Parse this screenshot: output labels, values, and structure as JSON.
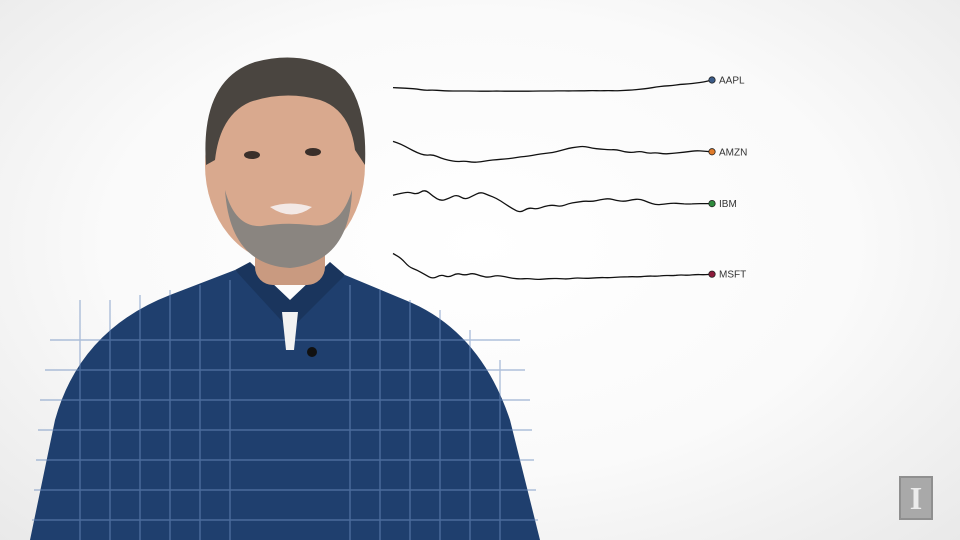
{
  "chart_data": {
    "type": "line",
    "title": "",
    "xlabel": "",
    "ylabel": "",
    "layout": "small-multiples sparklines, labels at right end",
    "series": [
      {
        "name": "AAPL",
        "color": "#3b5b88",
        "values": [
          0.62,
          0.6,
          0.58,
          0.55,
          0.48,
          0.5,
          0.47,
          0.45,
          0.45,
          0.45,
          0.45,
          0.44,
          0.44,
          0.45,
          0.44,
          0.44,
          0.44,
          0.44,
          0.45,
          0.45,
          0.45,
          0.46,
          0.45,
          0.46,
          0.46,
          0.47,
          0.46,
          0.47,
          0.46,
          0.48,
          0.5,
          0.54,
          0.58,
          0.65,
          0.7,
          0.72,
          0.78,
          0.8,
          0.85,
          0.9,
          1.0
        ]
      },
      {
        "name": "AMZN",
        "color": "#e07b2a",
        "values": [
          0.95,
          0.85,
          0.7,
          0.55,
          0.45,
          0.48,
          0.35,
          0.28,
          0.22,
          0.25,
          0.2,
          0.22,
          0.27,
          0.3,
          0.32,
          0.35,
          0.4,
          0.42,
          0.48,
          0.52,
          0.55,
          0.62,
          0.7,
          0.75,
          0.78,
          0.7,
          0.68,
          0.65,
          0.66,
          0.58,
          0.55,
          0.6,
          0.52,
          0.55,
          0.5,
          0.52,
          0.55,
          0.58,
          0.62,
          0.6,
          0.58
        ]
      },
      {
        "name": "IBM",
        "color": "#2e8b3d",
        "values": [
          0.72,
          0.8,
          0.85,
          0.75,
          0.95,
          0.68,
          0.5,
          0.6,
          0.75,
          0.55,
          0.7,
          0.85,
          0.72,
          0.6,
          0.4,
          0.2,
          0.05,
          0.25,
          0.18,
          0.3,
          0.35,
          0.28,
          0.4,
          0.45,
          0.5,
          0.48,
          0.55,
          0.6,
          0.52,
          0.48,
          0.55,
          0.58,
          0.45,
          0.35,
          0.38,
          0.42,
          0.4,
          0.38,
          0.4,
          0.4,
          0.4
        ]
      },
      {
        "name": "MSFT",
        "color": "#8b1a3a",
        "values": [
          0.95,
          0.8,
          0.5,
          0.4,
          0.25,
          0.1,
          0.25,
          0.15,
          0.3,
          0.22,
          0.3,
          0.2,
          0.15,
          0.22,
          0.18,
          0.12,
          0.1,
          0.12,
          0.08,
          0.1,
          0.12,
          0.11,
          0.1,
          0.14,
          0.12,
          0.13,
          0.15,
          0.14,
          0.16,
          0.17,
          0.18,
          0.17,
          0.2,
          0.19,
          0.22,
          0.21,
          0.24,
          0.22,
          0.25,
          0.24,
          0.26
        ]
      }
    ]
  },
  "branding": {
    "logo_icon": "illinois-block-i-icon",
    "logo_color": "#a9a9a9"
  },
  "presenter": {
    "shirt_color": "#1f3f6e",
    "hair_color": "#4a4540",
    "skin_color": "#d9a98e"
  }
}
